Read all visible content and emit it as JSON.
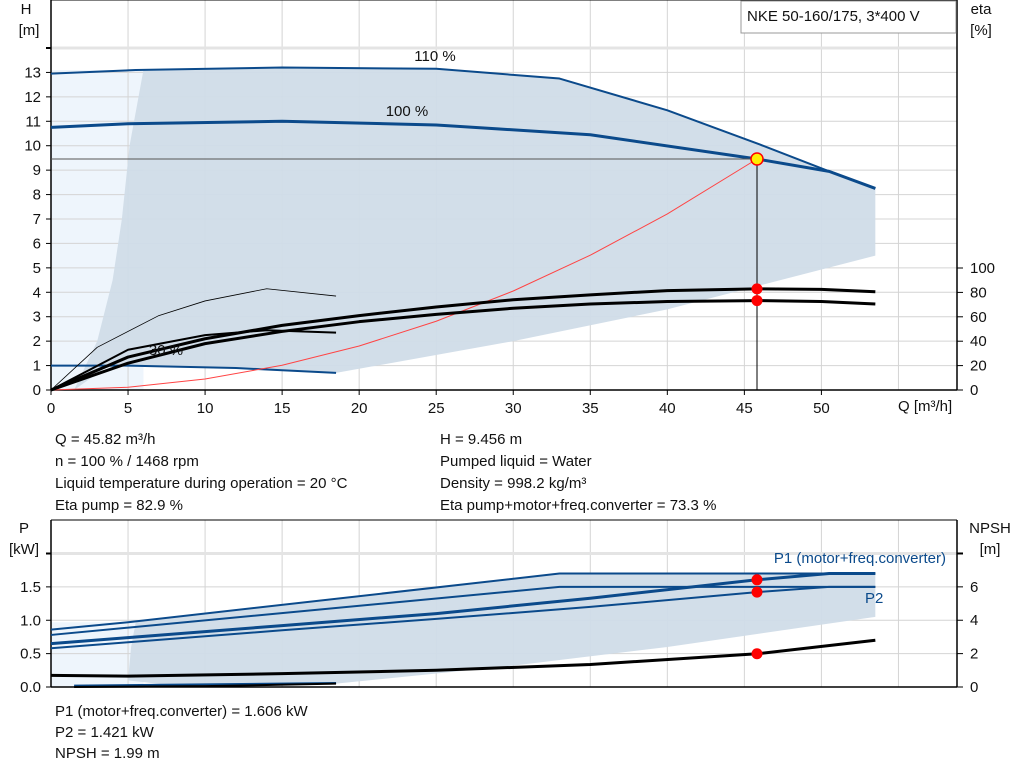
{
  "chart_data": [
    {
      "type": "line",
      "title": "NKE 50-160/175, 3*400 V",
      "xlabel": "Q [m³/h]",
      "ylabel": "H\n[m]",
      "ylabel_left": [
        "H",
        "[m]"
      ],
      "ylabel_right": [
        "eta",
        "[%]"
      ],
      "xlim": [
        0,
        58.8
      ],
      "ylim": [
        0,
        14
      ],
      "y2lim": [
        0,
        114.7
      ],
      "grid": true,
      "x_ticks": [
        0,
        5,
        10,
        15,
        20,
        25,
        30,
        35,
        40,
        45,
        50
      ],
      "y_ticks": [
        0,
        1,
        2,
        3,
        4,
        5,
        6,
        7,
        8,
        9,
        10,
        11,
        12,
        13
      ],
      "y2_ticks": [
        0,
        20,
        40,
        60,
        80,
        100
      ],
      "annotations": [
        "110 %",
        "100 %",
        "30 %"
      ],
      "series": [
        {
          "name": "110 %",
          "axis": "H",
          "color": "#0b4a8b",
          "points": [
            [
              0,
              12.95
            ],
            [
              5.5,
              13.1
            ],
            [
              15,
              13.2
            ],
            [
              25,
              13.15
            ],
            [
              33,
              12.75
            ],
            [
              40,
              11.45
            ],
            [
              46,
              10.05
            ],
            [
              50.5,
              8.95
            ],
            [
              53.5,
              8.25
            ]
          ]
        },
        {
          "name": "100 %",
          "axis": "H",
          "color": "#0b4a8b",
          "points": [
            [
              0,
              10.75
            ],
            [
              5,
              10.9
            ],
            [
              15,
              11.0
            ],
            [
              25,
              10.85
            ],
            [
              35,
              10.45
            ],
            [
              45.82,
              9.456
            ],
            [
              50.5,
              8.95
            ],
            [
              53.5,
              8.25
            ]
          ]
        },
        {
          "axis": "H",
          "color": "#0b4a8b",
          "points": [
            [
              0,
              1.0
            ],
            [
              5,
              1.0
            ],
            [
              12,
              0.9
            ],
            [
              18.5,
              0.7
            ]
          ]
        },
        {
          "axis": "H",
          "color": "#ff4444",
          "points": [
            [
              0,
              0
            ],
            [
              5,
              0.113
            ],
            [
              10,
              0.45
            ],
            [
              15,
              1.013
            ],
            [
              20,
              1.8
            ],
            [
              25,
              2.815
            ],
            [
              30,
              4.053
            ],
            [
              35,
              5.517
            ],
            [
              40,
              7.206
            ],
            [
              45.82,
              9.456
            ]
          ]
        },
        {
          "axis": "eta",
          "color": "#000000",
          "points": [
            [
              0,
              0
            ],
            [
              5,
              27
            ],
            [
              10,
              42
            ],
            [
              15,
              53
            ],
            [
              20,
              61
            ],
            [
              25,
              68
            ],
            [
              30,
              74
            ],
            [
              35,
              78
            ],
            [
              40,
              81.5
            ],
            [
              45.82,
              82.9
            ],
            [
              50,
              82.5
            ],
            [
              53.5,
              80.5
            ]
          ]
        },
        {
          "axis": "eta",
          "color": "#000000",
          "points": [
            [
              0,
              0
            ],
            [
              5,
              22
            ],
            [
              10,
              38
            ],
            [
              15,
              48
            ],
            [
              20,
              56
            ],
            [
              25,
              62
            ],
            [
              30,
              67
            ],
            [
              35,
              70.5
            ],
            [
              40,
              72.5
            ],
            [
              45.82,
              73.3
            ],
            [
              50,
              72.5
            ],
            [
              53.5,
              70.5
            ]
          ]
        },
        {
          "axis": "eta",
          "color": "#000000",
          "points": [
            [
              0,
              0
            ],
            [
              3,
              35
            ],
            [
              7,
              61
            ],
            [
              10,
              73
            ],
            [
              14,
              83
            ],
            [
              18.5,
              77
            ]
          ]
        },
        {
          "axis": "eta",
          "color": "#000000",
          "points": [
            [
              0,
              0
            ],
            [
              5,
              33
            ],
            [
              10,
              45
            ],
            [
              14,
              49
            ],
            [
              18.5,
              47
            ]
          ]
        }
      ],
      "operating_area": [
        [
          6,
          13.1
        ],
        [
          15,
          13.2
        ],
        [
          25,
          13.15
        ],
        [
          33,
          12.75
        ],
        [
          40,
          11.45
        ],
        [
          46,
          10.05
        ],
        [
          50.5,
          8.95
        ],
        [
          53.5,
          8.25
        ],
        [
          53.5,
          5.5
        ],
        [
          40,
          3.3
        ],
        [
          30,
          2.0
        ],
        [
          18.5,
          0.7
        ],
        [
          12,
          0.9
        ],
        [
          5,
          1.0
        ],
        [
          3.5,
          0.9
        ],
        [
          1.5,
          0
        ],
        [
          3,
          2
        ],
        [
          4,
          4.5
        ],
        [
          4.6,
          7
        ],
        [
          5.1,
          10
        ]
      ],
      "operating_point": {
        "Q": 45.82,
        "H": 9.456,
        "eta_pump": 82.9,
        "eta_total": 73.3
      }
    },
    {
      "type": "line",
      "ylabel_left": [
        "P",
        "[kW]"
      ],
      "ylabel_right": [
        "NPSH",
        "[m]"
      ],
      "xlim": [
        0,
        58.8
      ],
      "ylim": [
        0,
        2.0
      ],
      "y2lim": [
        0,
        8
      ],
      "grid": true,
      "y_ticks": [
        "0.0",
        "0.5",
        "1.0",
        "1.5"
      ],
      "y2_ticks": [
        0,
        2,
        4,
        6
      ],
      "series": [
        {
          "name": "P1 (motor+freq.converter)",
          "axis": "P",
          "color": "#0b4a8b",
          "points": [
            [
              0,
              0.65
            ],
            [
              5,
              0.74
            ],
            [
              15,
              0.92
            ],
            [
              25,
              1.1
            ],
            [
              35,
              1.33
            ],
            [
              45.82,
              1.606
            ],
            [
              50.5,
              1.7
            ],
            [
              53.5,
              1.7
            ]
          ]
        },
        {
          "name": "P2",
          "axis": "P",
          "color": "#0b4a8b",
          "points": [
            [
              0,
              0.58
            ],
            [
              5,
              0.67
            ],
            [
              15,
              0.85
            ],
            [
              25,
              1.02
            ],
            [
              35,
              1.2
            ],
            [
              45.82,
              1.421
            ],
            [
              50.5,
              1.5
            ],
            [
              53.5,
              1.5
            ]
          ]
        },
        {
          "axis": "P",
          "color": "#0b4a8b",
          "points": [
            [
              0,
              0.86
            ],
            [
              5,
              0.97
            ],
            [
              33,
              1.7
            ],
            [
              53.5,
              1.7
            ]
          ]
        },
        {
          "axis": "P",
          "color": "#0b4a8b",
          "points": [
            [
              0,
              0.78
            ],
            [
              33,
              1.5
            ],
            [
              53.5,
              1.5
            ]
          ]
        },
        {
          "axis": "P",
          "color": "#0b4a8b",
          "points": [
            [
              1.5,
              0.02
            ],
            [
              18.5,
              0.06
            ]
          ]
        },
        {
          "axis": "NPSH",
          "color": "#000000",
          "points": [
            [
              0,
              0.7
            ],
            [
              5,
              0.65
            ],
            [
              15,
              0.8
            ],
            [
              25,
              1.0
            ],
            [
              35,
              1.35
            ],
            [
              45.82,
              1.99
            ],
            [
              53.5,
              2.8
            ]
          ]
        },
        {
          "axis": "NPSH",
          "color": "#000000",
          "points": [
            [
              1.5,
              0.0
            ],
            [
              10,
              0.05
            ],
            [
              18.5,
              0.2
            ]
          ]
        }
      ],
      "operating_area": [
        [
          5.5,
          0.97
        ],
        [
          33,
          1.7
        ],
        [
          53.5,
          1.7
        ],
        [
          53.5,
          1.05
        ],
        [
          40,
          0.6
        ],
        [
          30,
          0.32
        ],
        [
          18.5,
          0.05
        ],
        [
          8,
          0.02
        ],
        [
          5,
          0.1
        ],
        [
          5.2,
          0.6
        ]
      ],
      "operating_point": {
        "Q": 45.82,
        "P1": 1.606,
        "P2": 1.421,
        "NPSH": 1.99
      }
    }
  ],
  "info_top": {
    "left": [
      "Q = 45.82 m³/h",
      "n = 100 % / 1468 rpm",
      "Liquid temperature during operation = 20 °C",
      "Eta pump = 82.9 %"
    ],
    "right": [
      "H = 9.456 m",
      "Pumped liquid = Water",
      "Density = 998.2 kg/m³",
      "Eta pump+motor+freq.converter = 73.3 %"
    ]
  },
  "info_bottom": [
    "P1 (motor+freq.converter) = 1.606 kW",
    "P2 = 1.421 kW",
    "NPSH = 1.99 m"
  ],
  "colors": {
    "curve": "#0b4a8b",
    "area": "#d0dce8",
    "area_light": "#eef5fc",
    "system_curve": "#ff4444",
    "marker": "#ff0000",
    "op_point": "#ffee00"
  }
}
